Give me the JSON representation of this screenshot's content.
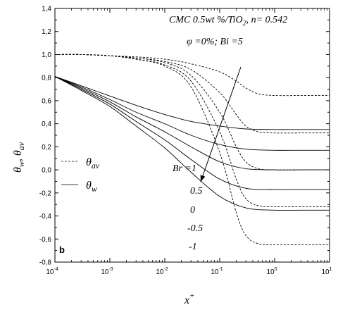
{
  "chart_data": {
    "type": "line",
    "xlabel": "x",
    "xlabel_sup": "+",
    "ylabel_main": "θ",
    "ylabel_sub1": "w",
    "ylabel_sep": ",",
    "ylabel_sub2": "av",
    "x_scale": "log",
    "xlim": [
      0.0001,
      10
    ],
    "ylim": [
      -0.8,
      1.4
    ],
    "x_ticks": [
      {
        "value": 0.0001,
        "base": "10",
        "exp": "-4"
      },
      {
        "value": 0.001,
        "base": "10",
        "exp": "-3"
      },
      {
        "value": 0.01,
        "base": "10",
        "exp": "-2"
      },
      {
        "value": 0.1,
        "base": "10",
        "exp": "-1"
      },
      {
        "value": 1,
        "base": "10",
        "exp": "0"
      },
      {
        "value": 10,
        "base": "10",
        "exp": "1"
      }
    ],
    "y_ticks": [
      {
        "value": -0.8,
        "label": "-0,8"
      },
      {
        "value": -0.6,
        "label": "-0,6"
      },
      {
        "value": -0.4,
        "label": "-0,4"
      },
      {
        "value": -0.2,
        "label": "-0,2"
      },
      {
        "value": 0.0,
        "label": "0,0"
      },
      {
        "value": 0.2,
        "label": "0,2"
      },
      {
        "value": 0.4,
        "label": "0,4"
      },
      {
        "value": 0.6,
        "label": "0,6"
      },
      {
        "value": 0.8,
        "label": "0,8"
      },
      {
        "value": 1.0,
        "label": "1,0"
      },
      {
        "value": 1.2,
        "label": "1,2"
      },
      {
        "value": 1.4,
        "label": "1,4"
      }
    ],
    "grid": false,
    "legend_position": "left",
    "legend": [
      {
        "symbol": "θ",
        "sub": "av",
        "style": "dashed"
      },
      {
        "symbol": "θ",
        "sub": "w",
        "style": "solid"
      }
    ],
    "annotations": {
      "title_line1": "CMC 0.5wt %/TiO",
      "title_sub": "2",
      "title_line1b": ", n= 0.542",
      "title_line2": "φ =0%; Bi =5",
      "panel_letter": "b",
      "br_label": "Br =1",
      "br_values": [
        "0.5",
        "0",
        "-0.5",
        "-1"
      ]
    },
    "series": [
      {
        "style": "solid",
        "Br": "1",
        "x": [
          0.0001,
          0.0003,
          0.001,
          0.003,
          0.01,
          0.03,
          0.1,
          0.3,
          1,
          3,
          10
        ],
        "y": [
          0.81,
          0.73,
          0.64,
          0.56,
          0.48,
          0.42,
          0.38,
          0.355,
          0.35,
          0.35,
          0.35
        ]
      },
      {
        "style": "solid",
        "Br": "0.5",
        "x": [
          0.0001,
          0.0003,
          0.001,
          0.003,
          0.01,
          0.03,
          0.1,
          0.3,
          1,
          3,
          10
        ],
        "y": [
          0.81,
          0.72,
          0.61,
          0.5,
          0.4,
          0.3,
          0.22,
          0.18,
          0.17,
          0.17,
          0.17
        ]
      },
      {
        "style": "solid",
        "Br": "0",
        "x": [
          0.0001,
          0.0003,
          0.001,
          0.003,
          0.01,
          0.03,
          0.1,
          0.3,
          1,
          3,
          10
        ],
        "y": [
          0.81,
          0.71,
          0.59,
          0.46,
          0.33,
          0.2,
          0.07,
          0.01,
          0.0,
          0.0,
          0.0
        ]
      },
      {
        "style": "solid",
        "Br": "-0.5",
        "x": [
          0.0001,
          0.0003,
          0.001,
          0.003,
          0.01,
          0.03,
          0.1,
          0.3,
          1,
          3,
          10
        ],
        "y": [
          0.81,
          0.7,
          0.57,
          0.42,
          0.26,
          0.09,
          -0.08,
          -0.16,
          -0.17,
          -0.17,
          -0.17
        ]
      },
      {
        "style": "solid",
        "Br": "-1",
        "x": [
          0.0001,
          0.0003,
          0.001,
          0.003,
          0.01,
          0.03,
          0.1,
          0.3,
          1,
          3,
          10
        ],
        "y": [
          0.81,
          0.69,
          0.55,
          0.38,
          0.19,
          -0.02,
          -0.23,
          -0.33,
          -0.35,
          -0.35,
          -0.35
        ]
      },
      {
        "style": "dashed",
        "Br": "1",
        "x": [
          0.0001,
          0.0003,
          0.001,
          0.003,
          0.01,
          0.03,
          0.1,
          0.2,
          0.3,
          0.5,
          1,
          3,
          10
        ],
        "y": [
          1.0,
          1.0,
          0.99,
          0.98,
          0.96,
          0.92,
          0.85,
          0.77,
          0.71,
          0.66,
          0.645,
          0.645,
          0.645
        ]
      },
      {
        "style": "dashed",
        "Br": "0.5",
        "x": [
          0.0001,
          0.0003,
          0.001,
          0.003,
          0.01,
          0.03,
          0.1,
          0.2,
          0.3,
          0.5,
          1,
          3,
          10
        ],
        "y": [
          1.0,
          1.0,
          0.99,
          0.97,
          0.94,
          0.87,
          0.67,
          0.48,
          0.38,
          0.33,
          0.32,
          0.32,
          0.32
        ]
      },
      {
        "style": "dashed",
        "Br": "0",
        "x": [
          0.0001,
          0.0003,
          0.001,
          0.003,
          0.01,
          0.03,
          0.1,
          0.2,
          0.3,
          0.5,
          1,
          3,
          10
        ],
        "y": [
          1.0,
          1.0,
          0.99,
          0.97,
          0.93,
          0.82,
          0.5,
          0.2,
          0.07,
          0.01,
          0.0,
          0.0,
          0.0
        ]
      },
      {
        "style": "dashed",
        "Br": "-0.5",
        "x": [
          0.0001,
          0.0003,
          0.001,
          0.003,
          0.01,
          0.03,
          0.1,
          0.2,
          0.3,
          0.5,
          1,
          3,
          10
        ],
        "y": [
          1.0,
          1.0,
          0.99,
          0.96,
          0.91,
          0.77,
          0.33,
          -0.08,
          -0.25,
          -0.31,
          -0.32,
          -0.32,
          -0.32
        ]
      },
      {
        "style": "dashed",
        "Br": "-1",
        "x": [
          0.0001,
          0.0003,
          0.001,
          0.003,
          0.01,
          0.03,
          0.1,
          0.2,
          0.3,
          0.5,
          1,
          3,
          10
        ],
        "y": [
          1.0,
          1.0,
          0.99,
          0.96,
          0.9,
          0.72,
          0.15,
          -0.37,
          -0.57,
          -0.64,
          -0.65,
          -0.65,
          -0.65
        ]
      }
    ]
  }
}
